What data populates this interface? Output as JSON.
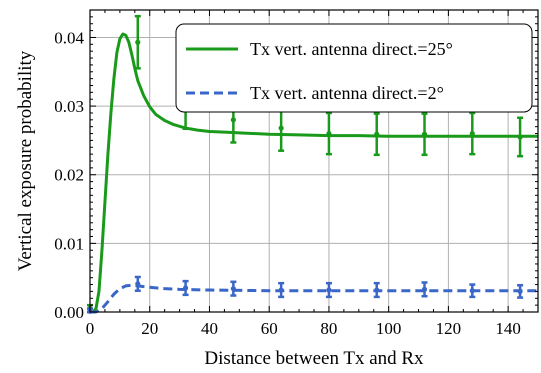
{
  "chart_data": {
    "type": "line",
    "title": "",
    "xlabel": "Distance between Tx and Rx",
    "ylabel": "Vertical exposure probability",
    "xlim": [
      0,
      150
    ],
    "ylim": [
      0,
      0.044
    ],
    "xticks": [
      0,
      20,
      40,
      60,
      80,
      100,
      120,
      140
    ],
    "xtick_labels": [
      "0",
      "20",
      "40",
      "60",
      "80",
      "100",
      "120",
      "140"
    ],
    "yticks": [
      0,
      0.01,
      0.02,
      0.03,
      0.04
    ],
    "ytick_labels": [
      "0.00",
      "0.01",
      "0.02",
      "0.03",
      "0.04"
    ],
    "grid": true,
    "legend_position": "top-right",
    "series": [
      {
        "name": "Tx vert. antenna direct.=25°",
        "color": "#1a9a1a",
        "line_style": "solid",
        "curve": {
          "x": [
            0,
            1,
            2,
            3,
            4,
            5,
            6,
            7,
            8,
            9,
            10,
            11,
            12,
            13,
            14,
            15,
            16,
            18,
            20,
            22,
            25,
            28,
            32,
            36,
            40,
            45,
            50,
            60,
            70,
            80,
            90,
            100,
            110,
            120,
            130,
            140,
            150
          ],
          "y": [
            0.0,
            0.0,
            0.0005,
            0.003,
            0.009,
            0.016,
            0.023,
            0.029,
            0.034,
            0.0378,
            0.0398,
            0.0405,
            0.0403,
            0.0393,
            0.0375,
            0.0355,
            0.0337,
            0.0315,
            0.0299,
            0.0288,
            0.0279,
            0.0273,
            0.0268,
            0.0265,
            0.0263,
            0.0262,
            0.0261,
            0.0259,
            0.0258,
            0.0257,
            0.0257,
            0.0256,
            0.0256,
            0.0256,
            0.0256,
            0.0256,
            0.0256
          ]
        },
        "points": {
          "x": [
            0,
            16,
            32,
            48,
            64,
            80,
            96,
            112,
            128,
            144
          ],
          "y": [
            0.0005,
            0.0393,
            0.0302,
            0.028,
            0.0268,
            0.026,
            0.0259,
            0.0259,
            0.026,
            0.0255
          ],
          "err": [
            0.0005,
            0.0038,
            0.0035,
            0.0033,
            0.0033,
            0.003,
            0.003,
            0.003,
            0.003,
            0.0028
          ]
        }
      },
      {
        "name": "Tx vert. antenna direct.=2°",
        "color": "#3a66c8",
        "line_style": "dashed",
        "curve": {
          "x": [
            0,
            2,
            4,
            6,
            8,
            10,
            12,
            14,
            16,
            18,
            20,
            25,
            30,
            40,
            60,
            80,
            100,
            120,
            150
          ],
          "y": [
            0.0,
            0.0,
            0.0005,
            0.0015,
            0.0026,
            0.0034,
            0.0038,
            0.0039,
            0.0038,
            0.0037,
            0.0036,
            0.0034,
            0.0033,
            0.0032,
            0.0031,
            0.0031,
            0.0031,
            0.0031,
            0.0031
          ]
        },
        "points": {
          "x": [
            0,
            16,
            32,
            48,
            64,
            80,
            96,
            112,
            128,
            144
          ],
          "y": [
            0.0001,
            0.0041,
            0.0035,
            0.0034,
            0.0032,
            0.0032,
            0.0032,
            0.0033,
            0.0031,
            0.003
          ],
          "err": [
            0.0004,
            0.001,
            0.001,
            0.001,
            0.001,
            0.001,
            0.001,
            0.001,
            0.0009,
            0.0009
          ]
        }
      }
    ]
  }
}
